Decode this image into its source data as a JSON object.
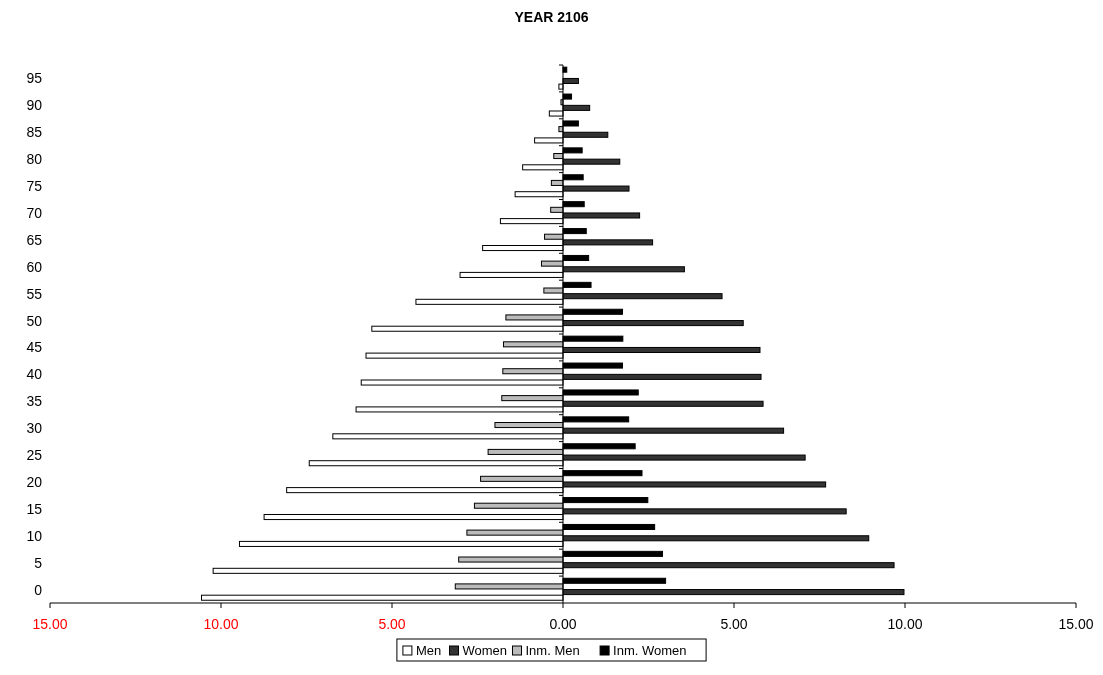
{
  "chart_data": {
    "type": "bar",
    "orientation": "horizontal",
    "title": "YEAR 2106",
    "categories": [
      "95",
      "90",
      "85",
      "80",
      "75",
      "70",
      "65",
      "60",
      "55",
      "50",
      "45",
      "40",
      "35",
      "30",
      "25",
      "20",
      "15",
      "10",
      "5",
      "0"
    ],
    "series": [
      {
        "name": "Men",
        "color": "#ffffff",
        "values": [
          -0.12,
          -0.4,
          -0.83,
          -1.18,
          -1.4,
          -1.83,
          -2.35,
          -3.01,
          -4.3,
          -5.59,
          -5.76,
          -5.9,
          -6.05,
          -6.73,
          -7.42,
          -8.08,
          -8.74,
          -9.46,
          -10.23,
          -10.57
        ]
      },
      {
        "name": "Women",
        "color": "#333333",
        "values": [
          0.45,
          0.78,
          1.31,
          1.66,
          1.93,
          2.24,
          2.62,
          3.55,
          4.65,
          5.27,
          5.76,
          5.79,
          5.85,
          6.45,
          7.08,
          7.68,
          8.28,
          8.94,
          9.68,
          9.97
        ]
      },
      {
        "name": "Inm. Men",
        "color": "#bbbbbb",
        "values": [
          null,
          -0.06,
          -0.12,
          -0.27,
          -0.34,
          -0.36,
          -0.54,
          -0.63,
          -0.56,
          -1.67,
          -1.74,
          -1.76,
          -1.79,
          -1.99,
          -2.19,
          -2.41,
          -2.59,
          -2.81,
          -3.05,
          -3.15
        ]
      },
      {
        "name": "Inm. Women",
        "color": "#000000",
        "values": [
          0.11,
          0.25,
          0.45,
          0.56,
          0.59,
          0.62,
          0.68,
          0.75,
          0.82,
          1.74,
          1.75,
          1.74,
          2.2,
          1.92,
          2.11,
          2.31,
          2.48,
          2.68,
          2.91,
          3.0
        ]
      }
    ],
    "xlim": [
      -15,
      15
    ],
    "xticks": [
      {
        "value": -15,
        "label": "15.00"
      },
      {
        "value": -10,
        "label": "10.00"
      },
      {
        "value": -5,
        "label": "5.00"
      },
      {
        "value": 0,
        "label": "0.00"
      },
      {
        "value": 5,
        "label": "5.00"
      },
      {
        "value": 10,
        "label": "10.00"
      },
      {
        "value": 15,
        "label": "15.00"
      }
    ],
    "legend": "bottom"
  }
}
